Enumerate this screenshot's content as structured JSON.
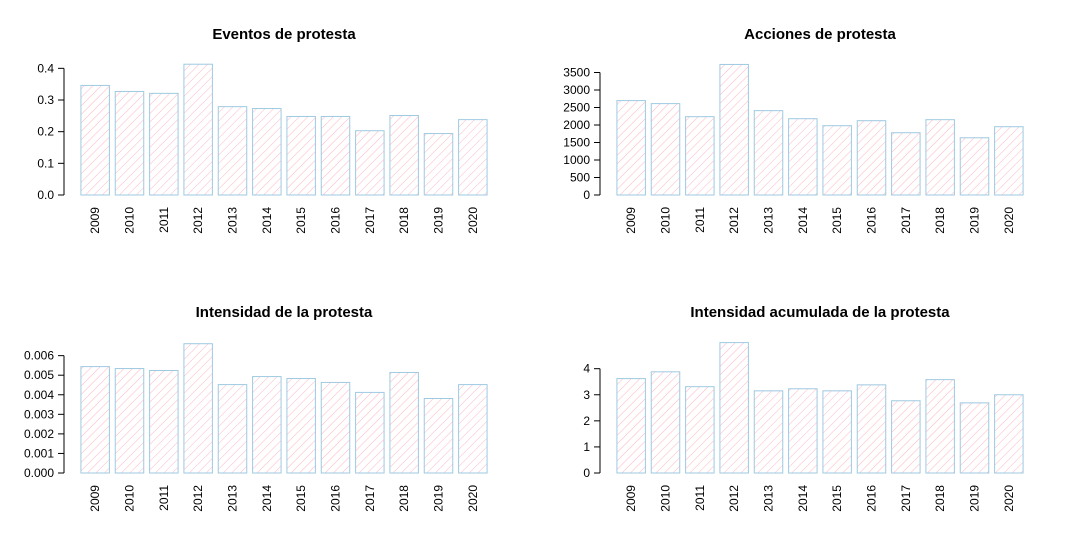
{
  "chart_data": [
    {
      "type": "bar",
      "title": "Eventos de protesta",
      "categories": [
        "2009",
        "2010",
        "2011",
        "2012",
        "2013",
        "2014",
        "2015",
        "2016",
        "2017",
        "2018",
        "2019",
        "2020"
      ],
      "values": [
        0.346,
        0.327,
        0.321,
        0.413,
        0.279,
        0.273,
        0.248,
        0.248,
        0.203,
        0.251,
        0.194,
        0.238
      ],
      "color": "#ffb6c1",
      "edge_color": "#9ecae1",
      "ylim": [
        0,
        0.42
      ],
      "yticks": [
        {
          "value": 0,
          "label": "0.0"
        },
        0.1,
        0.2,
        0.3,
        0.4
      ]
    },
    {
      "type": "bar",
      "title": "Acciones de protesta",
      "categories": [
        "2009",
        "2010",
        "2011",
        "2012",
        "2013",
        "2014",
        "2015",
        "2016",
        "2017",
        "2018",
        "2019",
        "2020"
      ],
      "values": [
        2697,
        2611,
        2238,
        3730,
        2410,
        2180,
        1980,
        2123,
        1779,
        2152,
        1635,
        1951
      ],
      "color": "#ffb6c1",
      "edge_color": "#9ecae1",
      "ylim": [
        0,
        3800
      ],
      "yticks": [
        0,
        500,
        1000,
        1500,
        2000,
        2500,
        3000,
        3500
      ]
    },
    {
      "type": "bar",
      "title": "Intensidad de la protesta",
      "categories": [
        "2009",
        "2010",
        "2011",
        "2012",
        "2013",
        "2014",
        "2015",
        "2016",
        "2017",
        "2018",
        "2019",
        "2020"
      ],
      "values": [
        0.00544,
        0.00534,
        0.00524,
        0.00661,
        0.00452,
        0.00493,
        0.00483,
        0.00463,
        0.00412,
        0.00514,
        0.00381,
        0.00452
      ],
      "color": "#ffb6c1",
      "edge_color": "#9ecae1",
      "ylim": [
        0,
        0.0068
      ],
      "yticks": [
        {
          "value": 0,
          "label": "0.000"
        },
        {
          "value": 0.001,
          "label": "0.001"
        },
        {
          "value": 0.002,
          "label": "0.002"
        },
        {
          "value": 0.003,
          "label": "0.003"
        },
        {
          "value": 0.004,
          "label": "0.004"
        },
        {
          "value": 0.005,
          "label": "0.005"
        },
        {
          "value": 0.006,
          "label": "0.006"
        }
      ]
    },
    {
      "type": "bar",
      "title": "Intensidad acumulada de la protesta",
      "categories": [
        "2009",
        "2010",
        "2011",
        "2012",
        "2013",
        "2014",
        "2015",
        "2016",
        "2017",
        "2018",
        "2019",
        "2020"
      ],
      "values": [
        3.62,
        3.88,
        3.31,
        5.0,
        3.15,
        3.23,
        3.15,
        3.38,
        2.77,
        3.58,
        2.69,
        3.0
      ],
      "color": "#ffb6c1",
      "edge_color": "#9ecae1",
      "ylim": [
        0,
        5.1
      ],
      "yticks": [
        0,
        1,
        2,
        3,
        4
      ]
    }
  ]
}
